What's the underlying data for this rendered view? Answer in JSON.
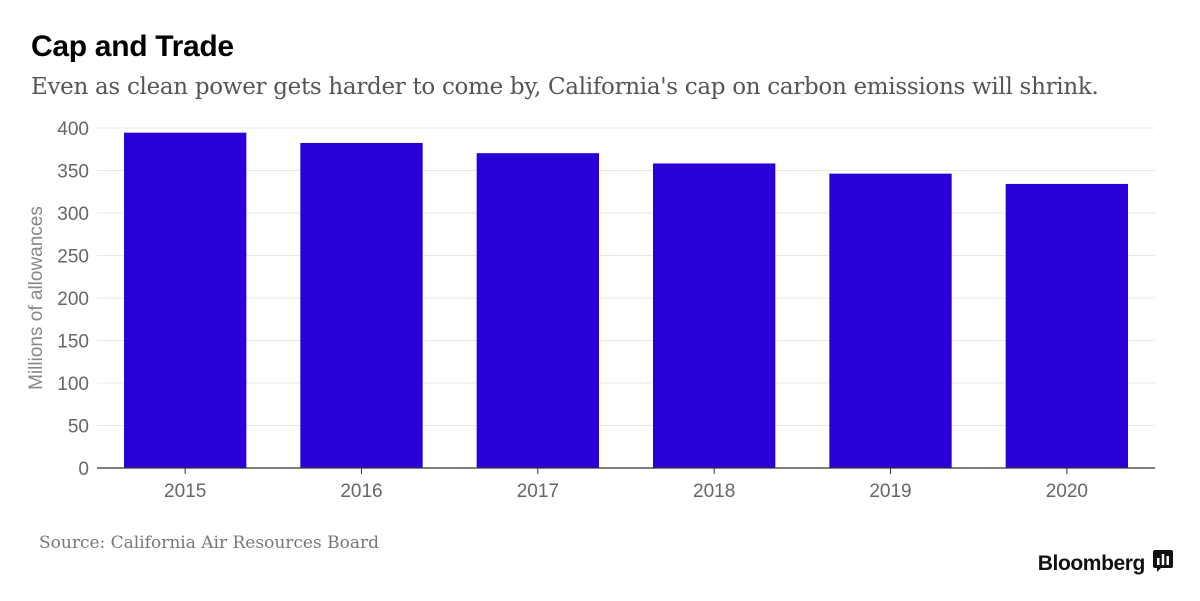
{
  "header": {
    "title": "Cap and Trade",
    "subtitle": "Even as clean power gets harder to come by, California's cap on carbon emissions will shrink."
  },
  "footer": {
    "source": "Source: California Air Resources Board",
    "brand": "Bloomberg",
    "brand_icon": "bloomberg-terminal-icon"
  },
  "colors": {
    "bar": "#2a00d8",
    "grid": "#e8e8e8",
    "axis": "#333333",
    "tick_text": "#666666"
  },
  "chart_data": {
    "type": "bar",
    "title": "Cap and Trade",
    "subtitle": "Even as clean power gets harder to come by, California's cap on carbon emissions will shrink.",
    "xlabel": "",
    "ylabel": "Millions of allowances",
    "categories": [
      "2015",
      "2016",
      "2017",
      "2018",
      "2019",
      "2020"
    ],
    "values": [
      394.5,
      382.4,
      370.4,
      358.3,
      346.3,
      334.2
    ],
    "ylim": [
      0,
      400
    ],
    "yticks": [
      0,
      50,
      100,
      150,
      200,
      250,
      300,
      350,
      400
    ],
    "grid": true,
    "legend": "none"
  }
}
